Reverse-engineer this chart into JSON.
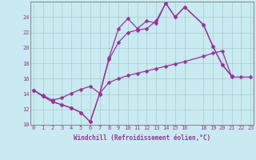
{
  "xlabel": "Windchill (Refroidissement éolien,°C)",
  "bg_color": "#c8eaf0",
  "line_color": "#993399",
  "grid_color": "#aacccc",
  "x_ticks": [
    0,
    1,
    2,
    3,
    4,
    5,
    6,
    7,
    8,
    9,
    10,
    11,
    12,
    13,
    14,
    15,
    16,
    18,
    19,
    20,
    21,
    22,
    23
  ],
  "x_tick_labels": [
    "0",
    "1",
    "2",
    "3",
    "4",
    "5",
    "6",
    "7",
    "8",
    "9",
    "10",
    "11",
    "12",
    "13",
    "14",
    "15",
    "16",
    "18",
    "19",
    "20",
    "21",
    "22",
    "23"
  ],
  "xlim": [
    -0.3,
    23.3
  ],
  "ylim": [
    10,
    26
  ],
  "yticks": [
    10,
    12,
    14,
    16,
    18,
    20,
    22,
    24
  ],
  "y_tick_labels": [
    "10",
    "12",
    "14",
    "16",
    "18",
    "20",
    "22",
    "24"
  ],
  "series1_x": [
    0,
    1,
    2,
    3,
    4,
    5,
    6,
    7,
    8,
    9,
    10,
    11,
    12,
    13,
    14,
    15,
    16,
    18,
    19,
    20,
    21
  ],
  "series1_y": [
    14.5,
    13.7,
    13.0,
    12.6,
    12.2,
    11.6,
    10.4,
    14.0,
    18.7,
    22.5,
    23.8,
    22.5,
    23.5,
    23.2,
    25.8,
    24.0,
    25.3,
    23.0,
    20.2,
    17.8,
    16.3
  ],
  "series2_x": [
    0,
    1,
    2,
    3,
    4,
    5,
    6,
    7,
    8,
    9,
    10,
    11,
    12,
    13,
    14,
    15,
    16,
    18,
    19,
    20,
    21
  ],
  "series2_y": [
    14.5,
    13.7,
    13.0,
    12.6,
    12.2,
    11.6,
    10.4,
    14.0,
    18.5,
    20.7,
    22.0,
    22.3,
    22.5,
    23.5,
    25.8,
    24.0,
    25.3,
    23.0,
    20.2,
    17.8,
    16.3
  ],
  "series3_x": [
    0,
    1,
    2,
    3,
    4,
    5,
    6,
    7,
    8,
    9,
    10,
    11,
    12,
    13,
    14,
    15,
    16,
    18,
    19,
    20,
    21,
    22,
    23
  ],
  "series3_y": [
    14.5,
    13.8,
    13.2,
    13.5,
    14.1,
    14.6,
    15.0,
    14.1,
    15.5,
    16.0,
    16.4,
    16.7,
    17.0,
    17.3,
    17.6,
    17.9,
    18.2,
    18.9,
    19.3,
    19.6,
    16.2,
    16.2,
    16.2
  ],
  "markersize": 2.5,
  "linewidth": 0.9,
  "tick_fontsize": 5.0,
  "xlabel_fontsize": 5.5
}
